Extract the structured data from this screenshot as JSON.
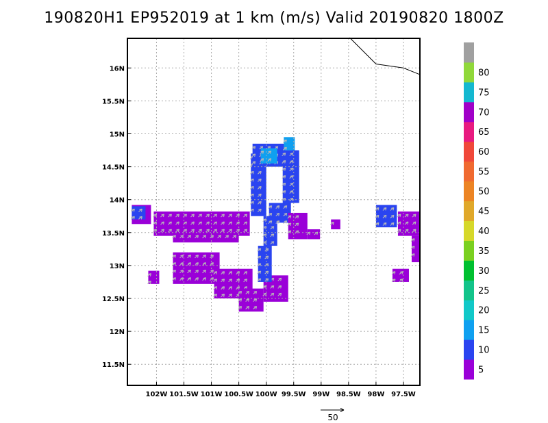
{
  "chart_data": {
    "type": "heatmap",
    "title": "190820H1  EP952019 at 1 km (m/s) Valid 20190820  1800Z",
    "x_range": [
      -102.53,
      -97.2
    ],
    "y_range": [
      11.18,
      16.45
    ],
    "x_ticks": [
      -102,
      -101.5,
      -101,
      -100.5,
      -100,
      -99.5,
      -99,
      -98.5,
      -98,
      -97.5
    ],
    "x_tick_labels": [
      "102W",
      "101.5W",
      "101W",
      "100.5W",
      "100W",
      "99.5W",
      "99W",
      "98.5W",
      "98W",
      "97.5W"
    ],
    "y_ticks": [
      11.5,
      12,
      12.5,
      13,
      13.5,
      14,
      14.5,
      15,
      15.5,
      16
    ],
    "y_tick_labels": [
      "11.5N",
      "12N",
      "12.5N",
      "13N",
      "13.5N",
      "14N",
      "14.5N",
      "15N",
      "15.5N",
      "16N"
    ],
    "grid": true,
    "colorbar": {
      "placement": "right",
      "levels": [
        {
          "label": "5",
          "color": "#9a00d8"
        },
        {
          "label": "10",
          "color": "#2a44f0"
        },
        {
          "label": "15",
          "color": "#0fa0f0"
        },
        {
          "label": "20",
          "color": "#11c8c8"
        },
        {
          "label": "25",
          "color": "#12c48a"
        },
        {
          "label": "30",
          "color": "#00c030"
        },
        {
          "label": "35",
          "color": "#7ad020"
        },
        {
          "label": "40",
          "color": "#d6d82a"
        },
        {
          "label": "45",
          "color": "#e0a82a"
        },
        {
          "label": "50",
          "color": "#ec8424"
        },
        {
          "label": "55",
          "color": "#f06a30"
        },
        {
          "label": "60",
          "color": "#f0483a"
        },
        {
          "label": "65",
          "color": "#e81a80"
        },
        {
          "label": "70",
          "color": "#a000c8"
        },
        {
          "label": "75",
          "color": "#14b8d0"
        },
        {
          "label": "80",
          "color": "#90d83a"
        },
        {
          "label": "",
          "color": "#a0a0a0"
        }
      ]
    },
    "reference_vector": {
      "label": "50"
    },
    "coastline": [
      [
        -98.48,
        16.46
      ],
      [
        -98.0,
        16.06
      ],
      [
        -97.5,
        16.0
      ],
      [
        -97.2,
        15.9
      ]
    ],
    "wind_regions": [
      {
        "level": 5,
        "lon": [
          -102.45,
          -102.1
        ],
        "lat": [
          13.63,
          13.92
        ]
      },
      {
        "level": 10,
        "lon": [
          -102.45,
          -102.2
        ],
        "lat": [
          13.7,
          13.9
        ]
      },
      {
        "level": 5,
        "lon": [
          -102.05,
          -100.3
        ],
        "lat": [
          13.45,
          13.82
        ]
      },
      {
        "level": 5,
        "lon": [
          -101.7,
          -100.5
        ],
        "lat": [
          13.35,
          13.5
        ]
      },
      {
        "level": 5,
        "lon": [
          -101.7,
          -100.85
        ],
        "lat": [
          12.72,
          13.2
        ]
      },
      {
        "level": 5,
        "lon": [
          -100.95,
          -100.25
        ],
        "lat": [
          12.5,
          12.95
        ]
      },
      {
        "level": 5,
        "lon": [
          -100.5,
          -100.05
        ],
        "lat": [
          12.3,
          12.65
        ]
      },
      {
        "level": 5,
        "lon": [
          -102.15,
          -101.95
        ],
        "lat": [
          12.72,
          12.92
        ]
      },
      {
        "level": 5,
        "lon": [
          -100.05,
          -99.6
        ],
        "lat": [
          12.45,
          12.85
        ]
      },
      {
        "level": 10,
        "lon": [
          -100.15,
          -99.9
        ],
        "lat": [
          12.75,
          13.3
        ]
      },
      {
        "level": 10,
        "lon": [
          -100.05,
          -99.8
        ],
        "lat": [
          13.3,
          13.75
        ]
      },
      {
        "level": 10,
        "lon": [
          -100.28,
          -100.0
        ],
        "lat": [
          13.75,
          14.7
        ]
      },
      {
        "level": 10,
        "lon": [
          -100.25,
          -99.65
        ],
        "lat": [
          14.5,
          14.85
        ]
      },
      {
        "level": 15,
        "lon": [
          -100.1,
          -99.8
        ],
        "lat": [
          14.55,
          14.78
        ]
      },
      {
        "level": 10,
        "lon": [
          -99.7,
          -99.4
        ],
        "lat": [
          13.95,
          14.75
        ]
      },
      {
        "level": 15,
        "lon": [
          -99.68,
          -99.48
        ],
        "lat": [
          14.75,
          14.95
        ]
      },
      {
        "level": 10,
        "lon": [
          -99.95,
          -99.55
        ],
        "lat": [
          13.65,
          13.95
        ]
      },
      {
        "level": 5,
        "lon": [
          -99.6,
          -99.25
        ],
        "lat": [
          13.4,
          13.8
        ]
      },
      {
        "level": 5,
        "lon": [
          -99.25,
          -99.02
        ],
        "lat": [
          13.4,
          13.55
        ]
      },
      {
        "level": 5,
        "lon": [
          -98.82,
          -98.65
        ],
        "lat": [
          13.55,
          13.7
        ]
      },
      {
        "level": 10,
        "lon": [
          -98.0,
          -97.62
        ],
        "lat": [
          13.58,
          13.92
        ]
      },
      {
        "level": 5,
        "lon": [
          -97.6,
          -97.2
        ],
        "lat": [
          13.45,
          13.82
        ]
      },
      {
        "level": 5,
        "lon": [
          -97.35,
          -97.2
        ],
        "lat": [
          13.05,
          13.45
        ]
      },
      {
        "level": 5,
        "lon": [
          -97.7,
          -97.4
        ],
        "lat": [
          12.75,
          12.95
        ]
      }
    ]
  }
}
